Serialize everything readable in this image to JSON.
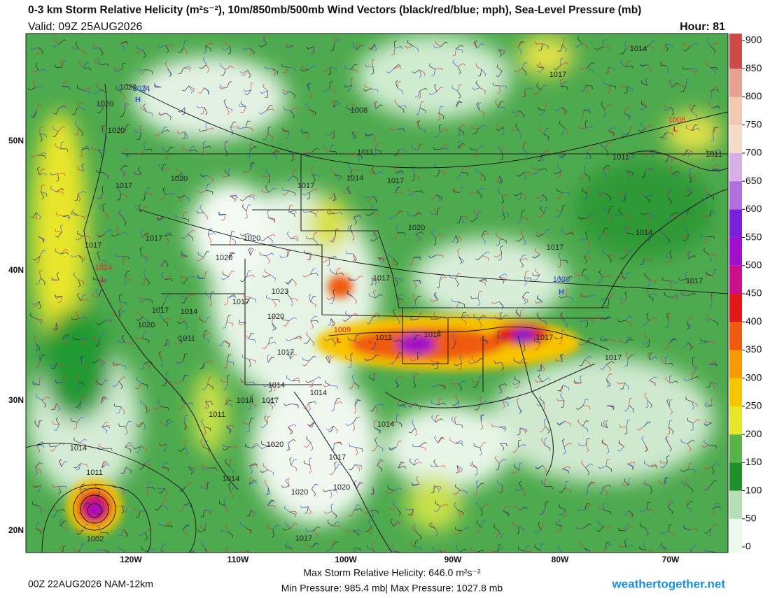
{
  "header": {
    "title": "0-3 km Storm Relative Helicity (m²s⁻²), 10m/850mb/500mb Wind Vectors (black/red/blue; mph), Sea-Level Pressure (mb)",
    "valid": "Valid: 09Z 25AUG2026",
    "hour": "Hour: 81"
  },
  "map": {
    "lat_labels": [
      "50N",
      "40N",
      "30N",
      "20N"
    ],
    "lon_labels": [
      "120W",
      "110W",
      "100W",
      "90W",
      "80W",
      "70W"
    ],
    "pressure_labels": [
      {
        "text": "1020",
        "color": "#222222"
      },
      {
        "text": "1024",
        "color": "#2a4fd6"
      },
      {
        "text": "H",
        "color": "#2a4fd6"
      },
      {
        "text": "1020",
        "color": "#222222"
      },
      {
        "text": "1020",
        "color": "#222222"
      },
      {
        "text": "1020",
        "color": "#222222"
      },
      {
        "text": "1017",
        "color": "#222222"
      },
      {
        "text": "1017",
        "color": "#222222"
      },
      {
        "text": "1014",
        "color": "#222222"
      },
      {
        "text": "1017",
        "color": "#222222"
      },
      {
        "text": "1011",
        "color": "#222222"
      },
      {
        "text": "1008",
        "color": "#222222"
      },
      {
        "text": "1014",
        "color": "#222222"
      },
      {
        "text": "1017",
        "color": "#222222"
      },
      {
        "text": "1008",
        "color": "#e8202a"
      },
      {
        "text": "L",
        "color": "#e8202a"
      },
      {
        "text": "1011",
        "color": "#222222"
      },
      {
        "text": "1011",
        "color": "#222222"
      },
      {
        "text": "1020",
        "color": "#222222"
      },
      {
        "text": "1014",
        "color": "#222222"
      },
      {
        "text": "1017",
        "color": "#222222"
      },
      {
        "text": "1017",
        "color": "#222222"
      },
      {
        "text": "1017",
        "color": "#222222"
      },
      {
        "text": "1020",
        "color": "#222222"
      },
      {
        "text": "1020",
        "color": "#222222"
      },
      {
        "text": "1014",
        "color": "#e8202a"
      },
      {
        "text": "L",
        "color": "#e8202a"
      },
      {
        "text": "1023",
        "color": "#222222"
      },
      {
        "text": "1017",
        "color": "#222222"
      },
      {
        "text": "1017",
        "color": "#222222"
      },
      {
        "text": "1017",
        "color": "#222222"
      },
      {
        "text": "1020",
        "color": "#2a4fd6"
      },
      {
        "text": "H",
        "color": "#2a4fd6"
      },
      {
        "text": "1017",
        "color": "#222222"
      },
      {
        "text": "1014",
        "color": "#222222"
      },
      {
        "text": "1020",
        "color": "#222222"
      },
      {
        "text": "1020",
        "color": "#222222"
      },
      {
        "text": "1011",
        "color": "#222222"
      },
      {
        "text": "1009",
        "color": "#e8202a"
      },
      {
        "text": "L",
        "color": "#e8202a"
      },
      {
        "text": "1011",
        "color": "#222222"
      },
      {
        "text": "1014",
        "color": "#222222"
      },
      {
        "text": "1017",
        "color": "#222222"
      },
      {
        "text": "1017",
        "color": "#222222"
      },
      {
        "text": "1017",
        "color": "#222222"
      },
      {
        "text": "1014",
        "color": "#222222"
      },
      {
        "text": "1014",
        "color": "#222222"
      },
      {
        "text": "1014",
        "color": "#222222"
      },
      {
        "text": "1017",
        "color": "#222222"
      },
      {
        "text": "1014",
        "color": "#222222"
      },
      {
        "text": "1011",
        "color": "#222222"
      },
      {
        "text": "1020",
        "color": "#222222"
      },
      {
        "text": "1017",
        "color": "#222222"
      },
      {
        "text": "1014",
        "color": "#222222"
      },
      {
        "text": "1011",
        "color": "#222222"
      },
      {
        "text": "1020",
        "color": "#222222"
      },
      {
        "text": "1020",
        "color": "#222222"
      },
      {
        "text": "1002",
        "color": "#222222"
      },
      {
        "text": "1017",
        "color": "#222222"
      },
      {
        "text": "1014",
        "color": "#222222"
      }
    ]
  },
  "colorbar": {
    "lim": [
      0,
      900
    ],
    "ticks": [
      0,
      50,
      100,
      150,
      200,
      250,
      300,
      350,
      400,
      450,
      500,
      550,
      600,
      650,
      700,
      750,
      800,
      850,
      900
    ],
    "colors": [
      "#eef8ee",
      "#b5dfb5",
      "#1f8f2a",
      "#58b44a",
      "#e8e62a",
      "#f7c400",
      "#f59a00",
      "#ef5a10",
      "#e01818",
      "#c8108a",
      "#a010c8",
      "#7a20d8",
      "#b070e0",
      "#d8b0e8",
      "#f4dcc8",
      "#f2c8b0",
      "#e6a090",
      "#cc4a4a"
    ]
  },
  "footer": {
    "run": "00Z 22AUG2026 NAM-12km",
    "max_srh": "Max Storm Relative Helicity: 646.0 m²s⁻²",
    "pressure": "Min Pressure: 985.4 mb| Max Pressure: 1027.8 mb",
    "site": "weathertogether.net"
  }
}
